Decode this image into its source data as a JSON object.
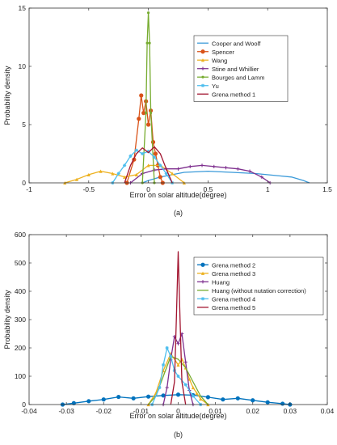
{
  "chart_data": [
    {
      "type": "line",
      "title": "",
      "xlabel": "Error on solar altitude(degree)",
      "ylabel": "Probability density",
      "caption": "(a)",
      "xlim": [
        -1,
        1.5
      ],
      "ylim": [
        0,
        15
      ],
      "xticks": [
        -1,
        -0.5,
        0,
        0.5,
        1,
        1.5
      ],
      "xtick_labels": [
        "-1",
        "-0.5",
        "0",
        "0.5",
        "1",
        "1.5"
      ],
      "yticks": [
        0,
        5,
        10,
        15
      ],
      "ytick_labels": [
        "0",
        "5",
        "10",
        "15"
      ],
      "legend_position": "top-right",
      "grid": false,
      "series": [
        {
          "name": "Cooper and Woolf",
          "color": "#3a9ad9",
          "marker": "none",
          "x": [
            -0.05,
            0.0,
            0.1,
            0.2,
            0.3,
            0.5,
            0.7,
            0.9,
            1.1,
            1.2,
            1.3,
            1.35
          ],
          "y": [
            0,
            0.2,
            0.5,
            0.7,
            0.9,
            1.0,
            0.9,
            0.8,
            0.6,
            0.5,
            0.2,
            0
          ]
        },
        {
          "name": "Spencer",
          "color": "#d95319",
          "marker": "circle",
          "x": [
            -0.18,
            -0.12,
            -0.08,
            -0.06,
            -0.04,
            -0.02,
            0.0,
            0.02,
            0.04,
            0.06,
            0.08,
            0.1,
            0.12
          ],
          "y": [
            0,
            2.0,
            5.5,
            7.5,
            6.0,
            7.0,
            5.0,
            6.2,
            3.5,
            2.5,
            1.5,
            0.5,
            0
          ]
        },
        {
          "name": "Wang",
          "color": "#edb120",
          "marker": "triangle",
          "x": [
            -0.7,
            -0.6,
            -0.5,
            -0.4,
            -0.3,
            -0.2,
            -0.1,
            0.0,
            0.1,
            0.2,
            0.3
          ],
          "y": [
            0,
            0.3,
            0.7,
            1.0,
            0.8,
            0.5,
            0.7,
            1.5,
            1.5,
            0.8,
            0
          ]
        },
        {
          "name": "Stine and Whillier",
          "color": "#7e2f8e",
          "marker": "plus",
          "x": [
            -0.15,
            -0.05,
            0.05,
            0.15,
            0.25,
            0.35,
            0.45,
            0.55,
            0.65,
            0.75,
            0.85,
            0.95,
            1.02
          ],
          "y": [
            0,
            0.8,
            1.1,
            1.2,
            1.2,
            1.4,
            1.5,
            1.4,
            1.3,
            1.2,
            1.0,
            0.5,
            0
          ]
        },
        {
          "name": "Bourges and Lamm",
          "color": "#77ac30",
          "marker": "dot",
          "x": [
            -0.05,
            -0.02,
            -0.01,
            0.0,
            0.01,
            0.02,
            0.05
          ],
          "y": [
            0,
            6.0,
            12.0,
            14.6,
            12.0,
            6.0,
            0
          ]
        },
        {
          "name": "Yu",
          "color": "#4dbeee",
          "marker": "star",
          "x": [
            -0.3,
            -0.25,
            -0.2,
            -0.15,
            -0.1,
            -0.05,
            0.0,
            0.05,
            0.1,
            0.15,
            0.2
          ],
          "y": [
            0,
            0.8,
            1.5,
            2.3,
            2.8,
            2.5,
            2.7,
            2.2,
            1.5,
            0.8,
            0
          ]
        },
        {
          "name": "Grena method 1",
          "color": "#a2142f",
          "marker": "none",
          "x": [
            -0.2,
            -0.15,
            -0.1,
            -0.05,
            0.0,
            0.05,
            0.1,
            0.15,
            0.2
          ],
          "y": [
            0,
            1.5,
            2.5,
            3.0,
            2.6,
            3.1,
            2.5,
            1.2,
            0
          ]
        }
      ]
    },
    {
      "type": "line",
      "title": "",
      "xlabel": "Error on solar altitude(degree)",
      "ylabel": "Probability density",
      "caption": "(b)",
      "xlim": [
        -0.04,
        0.04
      ],
      "ylim": [
        0,
        600
      ],
      "xticks": [
        -0.04,
        -0.03,
        -0.02,
        -0.01,
        0,
        0.01,
        0.02,
        0.03,
        0.04
      ],
      "xtick_labels": [
        "-0.04",
        "-0.03",
        "-0.02",
        "-0.01",
        "0",
        "0.01",
        "0.02",
        "0.03",
        "0.04"
      ],
      "yticks": [
        0,
        100,
        200,
        300,
        400,
        500,
        600
      ],
      "ytick_labels": [
        "0",
        "100",
        "200",
        "300",
        "400",
        "500",
        "600"
      ],
      "legend_position": "top-right",
      "grid": false,
      "series": [
        {
          "name": "Grena method 2",
          "color": "#0072bd",
          "marker": "circle",
          "x": [
            -0.031,
            -0.028,
            -0.024,
            -0.02,
            -0.016,
            -0.012,
            -0.008,
            -0.004,
            0.0,
            0.004,
            0.008,
            0.012,
            0.016,
            0.02,
            0.024,
            0.028,
            0.03
          ],
          "y": [
            0,
            5,
            12,
            18,
            27,
            22,
            28,
            32,
            35,
            33,
            26,
            18,
            22,
            15,
            8,
            3,
            0
          ]
        },
        {
          "name": "Grena method 3",
          "color": "#edb120",
          "marker": "triangle",
          "x": [
            -0.008,
            -0.006,
            -0.004,
            -0.002,
            0.0,
            0.001,
            0.002,
            0.003,
            0.004,
            0.005,
            0.006,
            0.008
          ],
          "y": [
            0,
            40,
            120,
            180,
            140,
            160,
            130,
            90,
            60,
            40,
            20,
            0
          ]
        },
        {
          "name": "Huang",
          "color": "#7e2f8e",
          "marker": "plus",
          "x": [
            -0.004,
            -0.003,
            -0.002,
            -0.001,
            0.0,
            0.001,
            0.002,
            0.003,
            0.004
          ],
          "y": [
            0,
            60,
            160,
            240,
            215,
            250,
            150,
            50,
            0
          ]
        },
        {
          "name": "Huang (without nutation correction)",
          "color": "#77ac30",
          "marker": "none",
          "x": [
            -0.008,
            -0.006,
            -0.004,
            -0.002,
            0.0,
            0.002,
            0.004,
            0.006,
            0.008
          ],
          "y": [
            0,
            30,
            100,
            170,
            160,
            130,
            80,
            30,
            0
          ]
        },
        {
          "name": "Grena method 4",
          "color": "#4dbeee",
          "marker": "star",
          "x": [
            -0.007,
            -0.005,
            -0.004,
            -0.003,
            -0.002,
            -0.001,
            0.0,
            0.002,
            0.004,
            0.006
          ],
          "y": [
            0,
            60,
            140,
            200,
            170,
            120,
            100,
            70,
            30,
            0
          ]
        },
        {
          "name": "Grena method 5",
          "color": "#a2142f",
          "marker": "none",
          "x": [
            -0.002,
            -0.001,
            -0.0005,
            0.0,
            0.0005,
            0.001,
            0.002
          ],
          "y": [
            0,
            80,
            300,
            540,
            300,
            80,
            0
          ]
        }
      ]
    }
  ]
}
